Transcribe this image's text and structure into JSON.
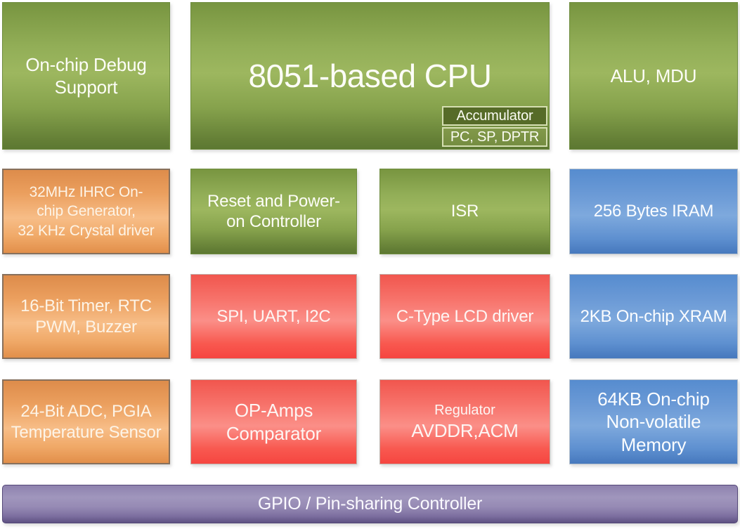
{
  "blocks": {
    "debug": {
      "label": "On-chip Debug\nSupport"
    },
    "cpu": {
      "title": "8051-based CPU",
      "sub_accumulator": "Accumulator",
      "sub_registers": "PC, SP, DPTR"
    },
    "alu": {
      "label": "ALU, MDU"
    },
    "clock": {
      "label": "32MHz IHRC On-\nchip Generator,\n32 KHz Crystal driver"
    },
    "reset": {
      "label": "Reset and Power-\non Controller"
    },
    "isr": {
      "label": "ISR"
    },
    "iram": {
      "label": "256 Bytes IRAM"
    },
    "timer": {
      "label": "16-Bit Timer, RTC\nPWM, Buzzer"
    },
    "serial": {
      "label": "SPI, UART, I2C"
    },
    "lcd": {
      "label": "C-Type LCD driver"
    },
    "xram": {
      "label": "2KB On-chip XRAM"
    },
    "adc": {
      "label": "24-Bit ADC, PGIA\nTemperature Sensor"
    },
    "opamp": {
      "label": "OP-Amps\nComparator"
    },
    "regulator": {
      "line1": "Regulator",
      "line2": "AVDDR,ACM"
    },
    "nvm": {
      "label": "64KB On-chip\nNon-volatile\nMemory"
    },
    "gpio": {
      "label": "GPIO / Pin-sharing Controller"
    }
  },
  "colors": {
    "green": "#8fae54",
    "orange": "#f2a967",
    "red": "#f9655e",
    "blue": "#6b99d4",
    "purple": "#8d81ae",
    "accumulator_fill": "#566b28",
    "sub_box_border": "#d5dfb2"
  }
}
